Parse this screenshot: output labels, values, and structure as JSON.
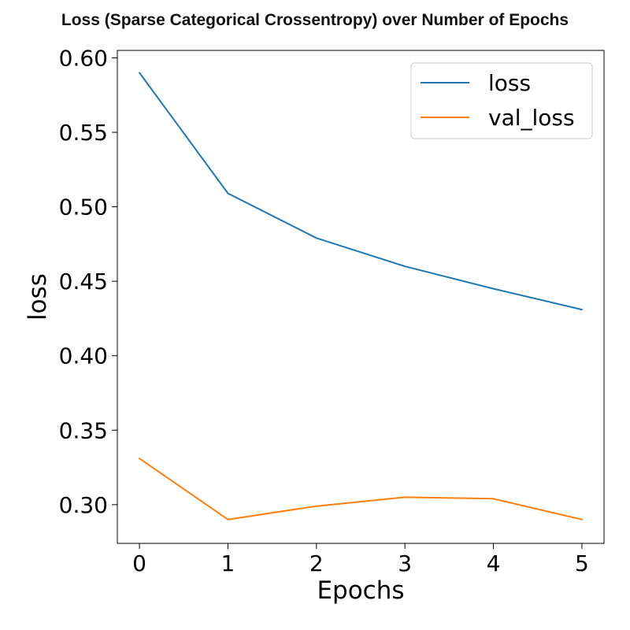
{
  "chart_data": {
    "type": "line",
    "title": "Loss (Sparse Categorical Crossentropy) over Number of Epochs",
    "xlabel": "Epochs",
    "ylabel": "loss",
    "x": [
      0,
      1,
      2,
      3,
      4,
      5
    ],
    "xticks": [
      0,
      1,
      2,
      3,
      4,
      5
    ],
    "xtick_labels": [
      "0",
      "1",
      "2",
      "3",
      "4",
      "5"
    ],
    "xlim": [
      -0.25,
      5.25
    ],
    "yticks": [
      0.3,
      0.35,
      0.4,
      0.45,
      0.5,
      0.55,
      0.6
    ],
    "ytick_labels": [
      "0.30",
      "0.35",
      "0.40",
      "0.45",
      "0.50",
      "0.55",
      "0.60"
    ],
    "ylim": [
      0.274,
      0.605
    ],
    "grid": false,
    "legend_position": "top-right",
    "series": [
      {
        "name": "loss",
        "color": "#1f77b4",
        "values": [
          0.59,
          0.509,
          0.479,
          0.46,
          0.445,
          0.431
        ]
      },
      {
        "name": "val_loss",
        "color": "#ff7f0e",
        "values": [
          0.331,
          0.29,
          0.299,
          0.305,
          0.304,
          0.29
        ]
      }
    ]
  }
}
